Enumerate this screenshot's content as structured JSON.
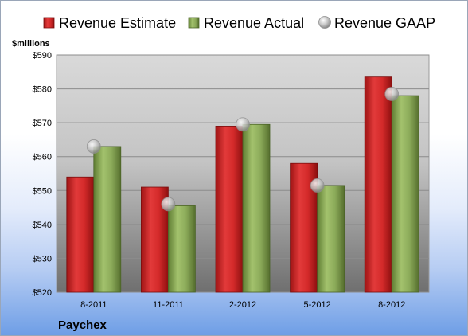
{
  "chart_data": {
    "type": "bar",
    "unit_label": "$millions",
    "company": "Paychex",
    "categories": [
      "8-2011",
      "11-2011",
      "2-2012",
      "5-2012",
      "8-2012"
    ],
    "series": [
      {
        "name": "Revenue Estimate",
        "kind": "bar",
        "color": "#d62a2a",
        "values": [
          554,
          551,
          569,
          558,
          583.5
        ]
      },
      {
        "name": "Revenue Actual",
        "kind": "bar",
        "color": "#8cab5a",
        "values": [
          563,
          545.5,
          569.5,
          551.5,
          578
        ]
      },
      {
        "name": "Revenue GAAP",
        "kind": "marker",
        "color": "#c8c8c8",
        "values": [
          563,
          546,
          569.5,
          551.5,
          578.5
        ]
      }
    ],
    "ylim": [
      520,
      590
    ],
    "yticks": [
      520,
      530,
      540,
      550,
      560,
      570,
      580,
      590
    ],
    "ytick_labels": [
      "$520",
      "$530",
      "$540",
      "$550",
      "$560",
      "$570",
      "$580",
      "$590"
    ],
    "grid": true,
    "legend_position": "top"
  }
}
